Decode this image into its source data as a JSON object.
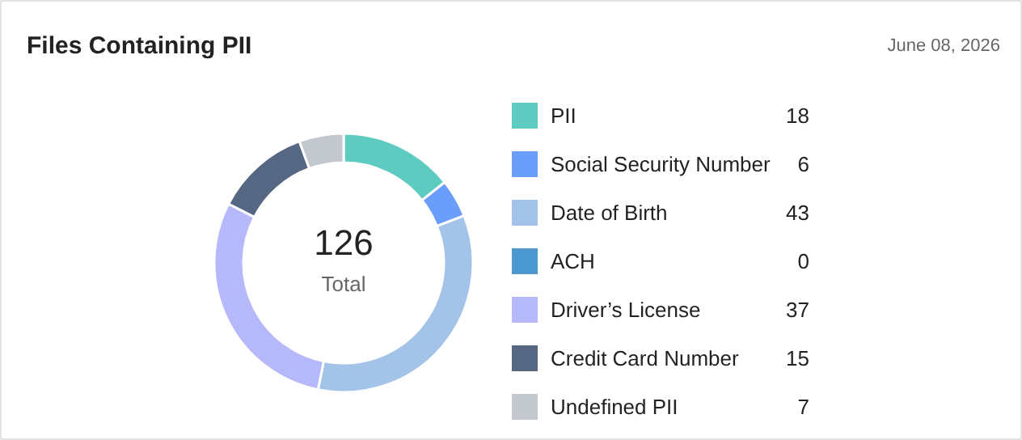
{
  "chart_data": {
    "type": "donut",
    "title": "Files Containing PII",
    "categories": [
      "PII",
      "Social Security Number",
      "Date of Birth",
      "ACH",
      "Driver’s License",
      "Credit Card Number",
      "Undefined PII"
    ],
    "values": [
      18,
      6,
      43,
      0,
      37,
      15,
      7
    ],
    "colors": [
      "#5ecbc0",
      "#6b9dfb",
      "#a3c4e8",
      "#4b97d1",
      "#b5b8fb",
      "#566783",
      "#c3c8ce"
    ],
    "annotations": [
      "June 08, 2026",
      "126",
      "Total"
    ],
    "value_labels": [
      "18",
      "6",
      "43",
      "0",
      "37",
      "15",
      "7"
    ],
    "legend": "right"
  }
}
